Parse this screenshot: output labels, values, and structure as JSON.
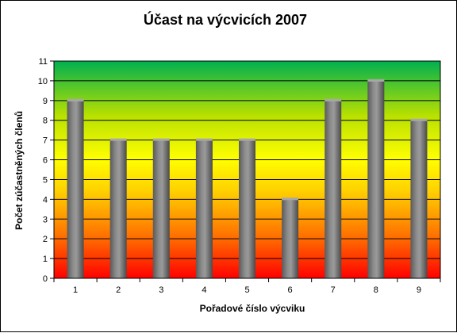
{
  "chart_data": {
    "type": "bar",
    "title": "Účast na výcvicích 2007",
    "xlabel": "Pořadové číslo výcviku",
    "ylabel": "Počet zúčastněných členů",
    "categories": [
      "1",
      "2",
      "3",
      "4",
      "5",
      "6",
      "7",
      "8",
      "9"
    ],
    "values": [
      9,
      7,
      7,
      7,
      7,
      4,
      9,
      10,
      8
    ],
    "ylim": [
      0,
      11
    ],
    "yticks": [
      "0",
      "1",
      "2",
      "3",
      "4",
      "5",
      "6",
      "7",
      "8",
      "9",
      "10",
      "11"
    ],
    "grid": true,
    "legend": "none",
    "colors": {
      "bar": "#808080",
      "plot_gradient": [
        "#ff0000",
        "#ff9900",
        "#ffff00",
        "#99cc00",
        "#00b050"
      ],
      "gridline": "#000000"
    }
  }
}
